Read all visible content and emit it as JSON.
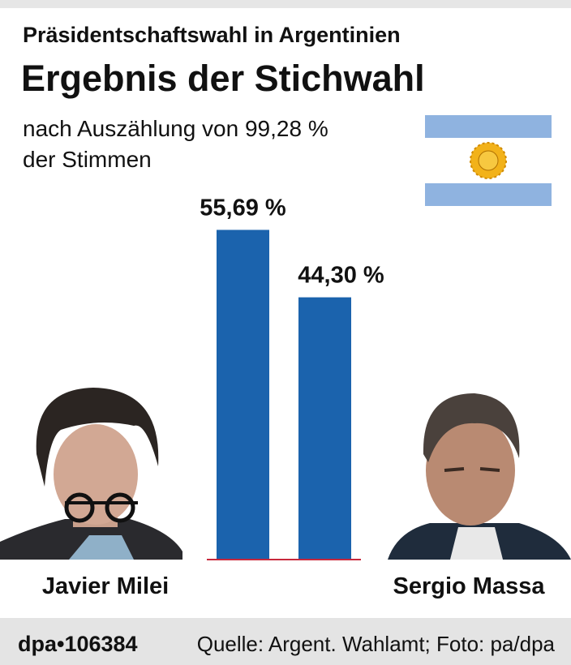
{
  "chart_data": {
    "type": "bar",
    "title": "Präsidentschaftswahl in Argentinien",
    "subtitle": "Ergebnis der Stichwahl",
    "note_lines": [
      "nach Auszählung von 99,28 %",
      "der Stimmen"
    ],
    "categories": [
      "Javier Milei",
      "Sergio Massa"
    ],
    "values": [
      55.69,
      44.3
    ],
    "value_labels": [
      "55,69 %",
      "44,30 %"
    ],
    "color": "#1b63ad"
  },
  "footer": {
    "id": "dpa•106384",
    "source": "Quelle: Argent. Wahlamt; Foto: pa/dpa"
  }
}
